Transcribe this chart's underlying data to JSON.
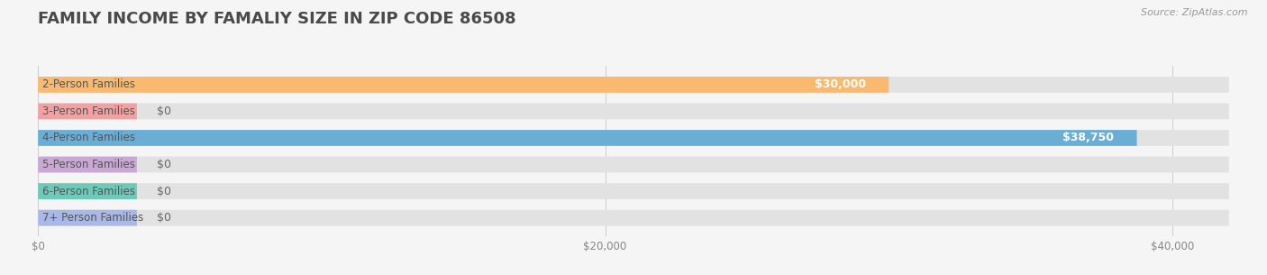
{
  "title": "FAMILY INCOME BY FAMALIY SIZE IN ZIP CODE 86508",
  "source": "Source: ZipAtlas.com",
  "categories": [
    "2-Person Families",
    "3-Person Families",
    "4-Person Families",
    "5-Person Families",
    "6-Person Families",
    "7+ Person Families"
  ],
  "values": [
    30000,
    0,
    38750,
    0,
    0,
    0
  ],
  "bar_colors": [
    "#f9b96e",
    "#f4a0a0",
    "#6aaed6",
    "#c9a8d4",
    "#6dc9b8",
    "#a8b8e8"
  ],
  "xlim": [
    0,
    42000
  ],
  "xticks": [
    0,
    20000,
    40000
  ],
  "xtick_labels": [
    "$0",
    "$20,000",
    "$40,000"
  ],
  "value_labels": [
    "$30,000",
    "$0",
    "$38,750",
    "$0",
    "$0",
    "$0"
  ],
  "background_color": "#f5f5f5",
  "bar_bg_color": "#e2e2e2",
  "title_color": "#4a4a4a",
  "title_fontsize": 13,
  "bar_height": 0.6,
  "figsize": [
    14.06,
    3.05
  ],
  "dpi": 100
}
